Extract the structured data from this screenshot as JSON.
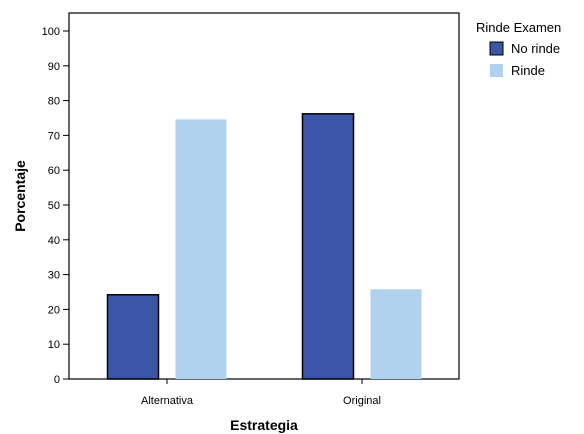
{
  "chart_data": {
    "type": "bar",
    "title": "",
    "xlabel": "Estrategia",
    "ylabel": "Porcentaje",
    "categories": [
      "Alternativa",
      "Original"
    ],
    "series": [
      {
        "name": "No rinde",
        "color": "#3b55a7",
        "values": [
          24.2,
          76.2
        ]
      },
      {
        "name": "Rinde",
        "color": "#b1d2ee",
        "values": [
          74.6,
          25.8
        ]
      }
    ],
    "ylim": [
      0,
      100
    ],
    "yticks": [
      "0",
      "10",
      "20",
      "30",
      "40",
      "50",
      "60",
      "70",
      "80",
      "90",
      "100"
    ],
    "grid": false,
    "legend": {
      "title": "Rinde Examen",
      "placement": "right"
    }
  }
}
